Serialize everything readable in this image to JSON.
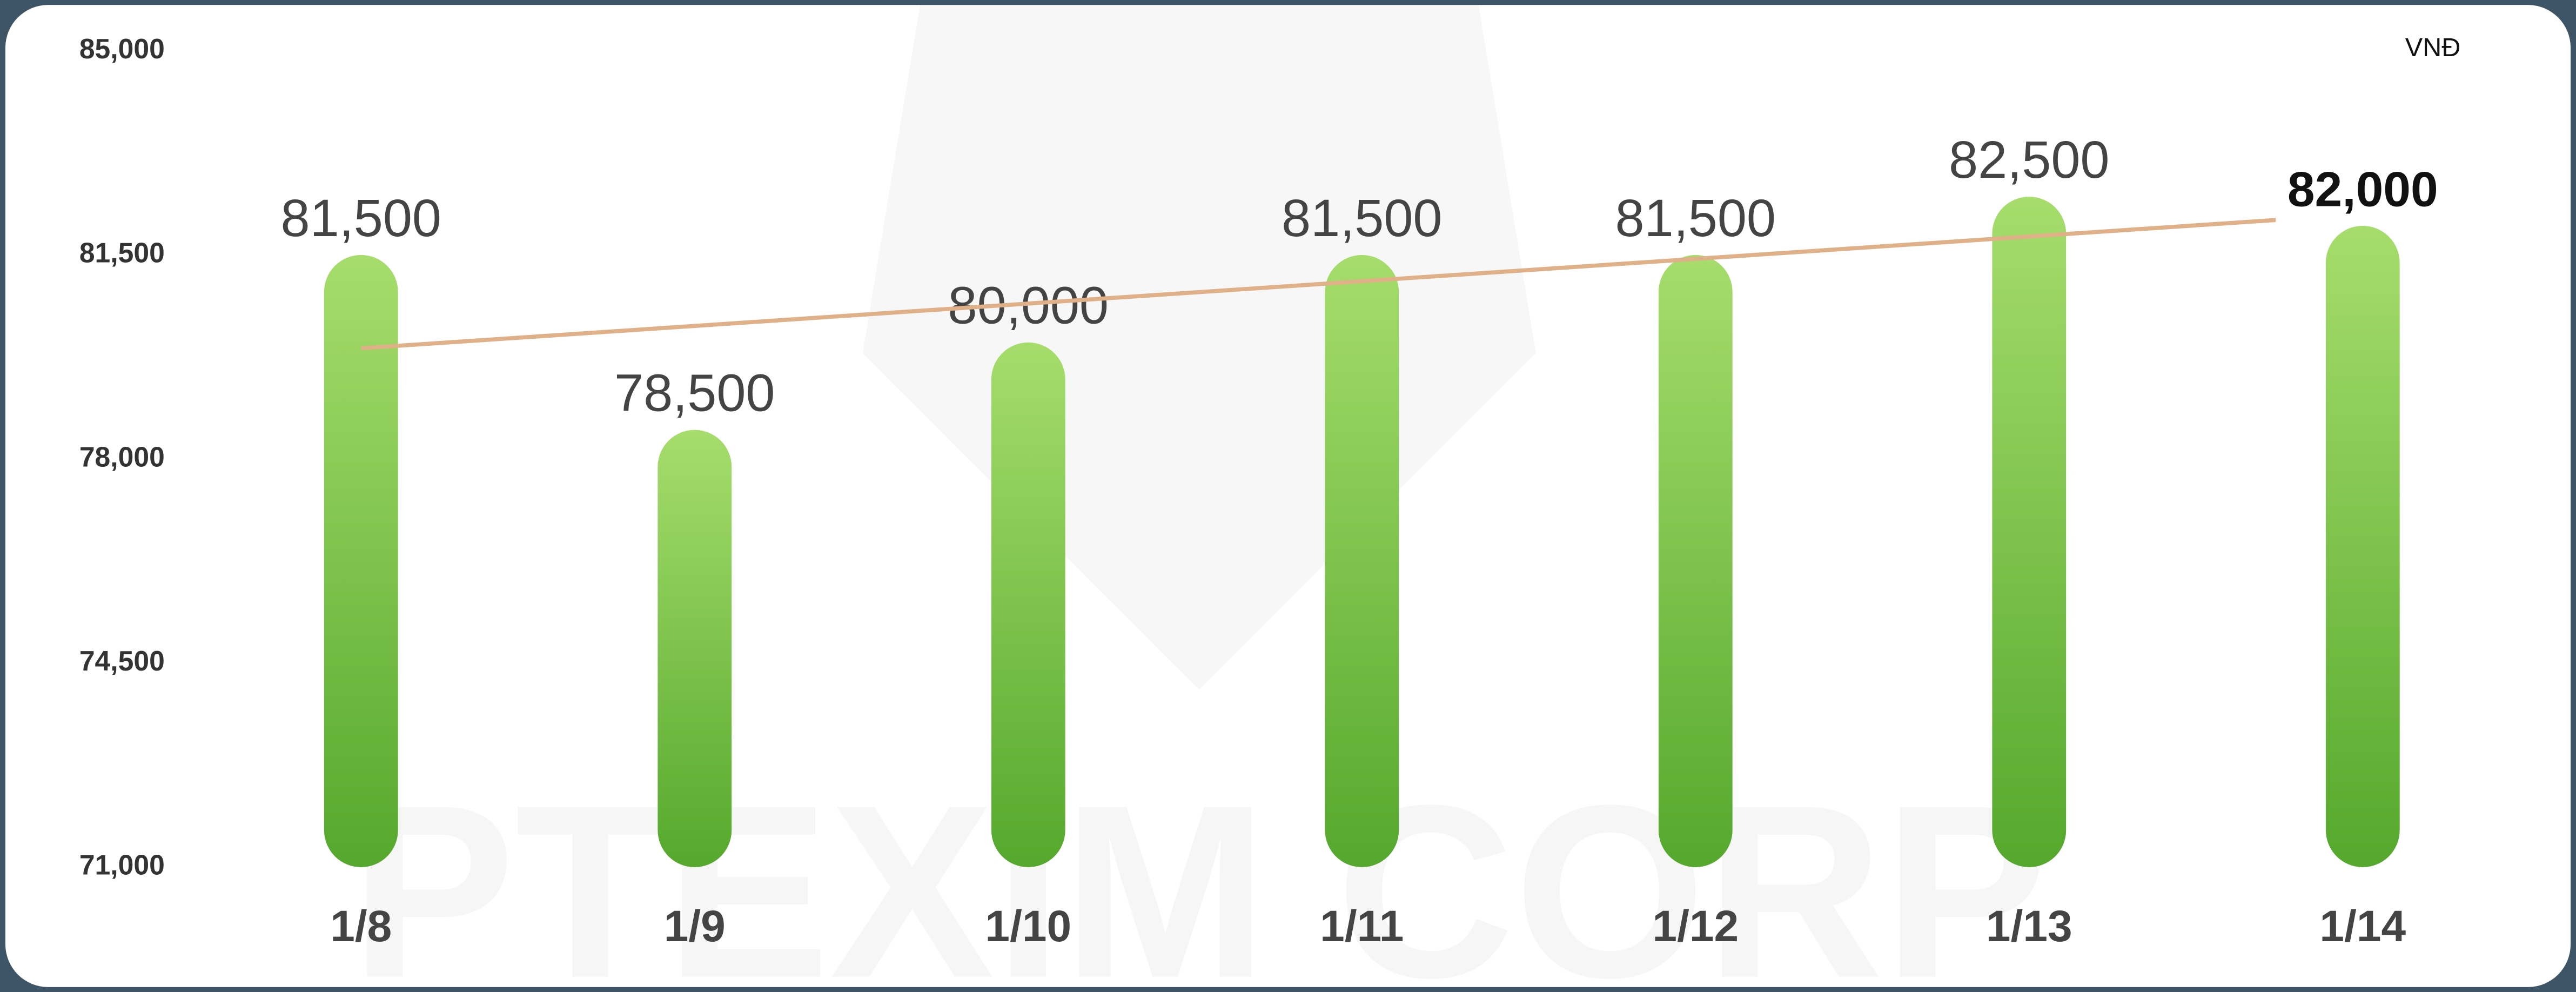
{
  "chart_data": {
    "type": "bar",
    "unit_label": "VNĐ",
    "watermark": "PTEXIM CORP",
    "categories": [
      "1/8",
      "1/9",
      "1/10",
      "1/11",
      "1/12",
      "1/13",
      "1/14"
    ],
    "values": [
      81500,
      78500,
      80000,
      81500,
      81500,
      82500,
      82000
    ],
    "value_labels": [
      "81,500",
      "78,500",
      "80,000",
      "81,500",
      "81,500",
      "82,500",
      "82,000"
    ],
    "color": "#6cbf3f",
    "trendline": {
      "values": [
        79900,
        82100
      ],
      "color": "#e0b088"
    },
    "ylim": [
      71000,
      85000
    ],
    "yticks": [
      {
        "value": 71000,
        "label": "71,000"
      },
      {
        "value": 74500,
        "label": "74,500"
      },
      {
        "value": 78000,
        "label": "78,000"
      },
      {
        "value": 81500,
        "label": "81,500"
      },
      {
        "value": 85000,
        "label": "85,000"
      }
    ],
    "grid": false
  }
}
